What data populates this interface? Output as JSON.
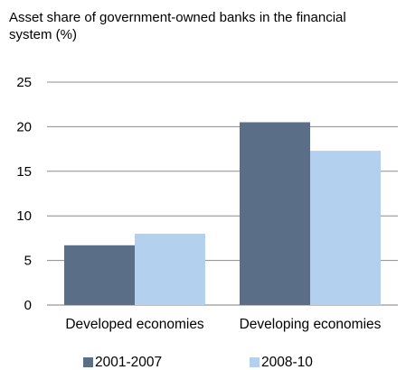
{
  "chart_data": {
    "type": "bar",
    "title": "Asset share of government-owned banks in  the financial system (%)",
    "categories": [
      "Developed economies",
      "Developing economies"
    ],
    "series": [
      {
        "name": "2001-2007",
        "values": [
          6.7,
          20.5
        ],
        "color": "#5a6f87"
      },
      {
        "name": "2008-10",
        "values": [
          8.0,
          17.3
        ],
        "color": "#b3d0ef"
      }
    ],
    "ylim": [
      0,
      25
    ],
    "yticks": [
      0,
      5,
      10,
      15,
      20,
      25
    ],
    "grid": true,
    "legend": "bottom"
  }
}
